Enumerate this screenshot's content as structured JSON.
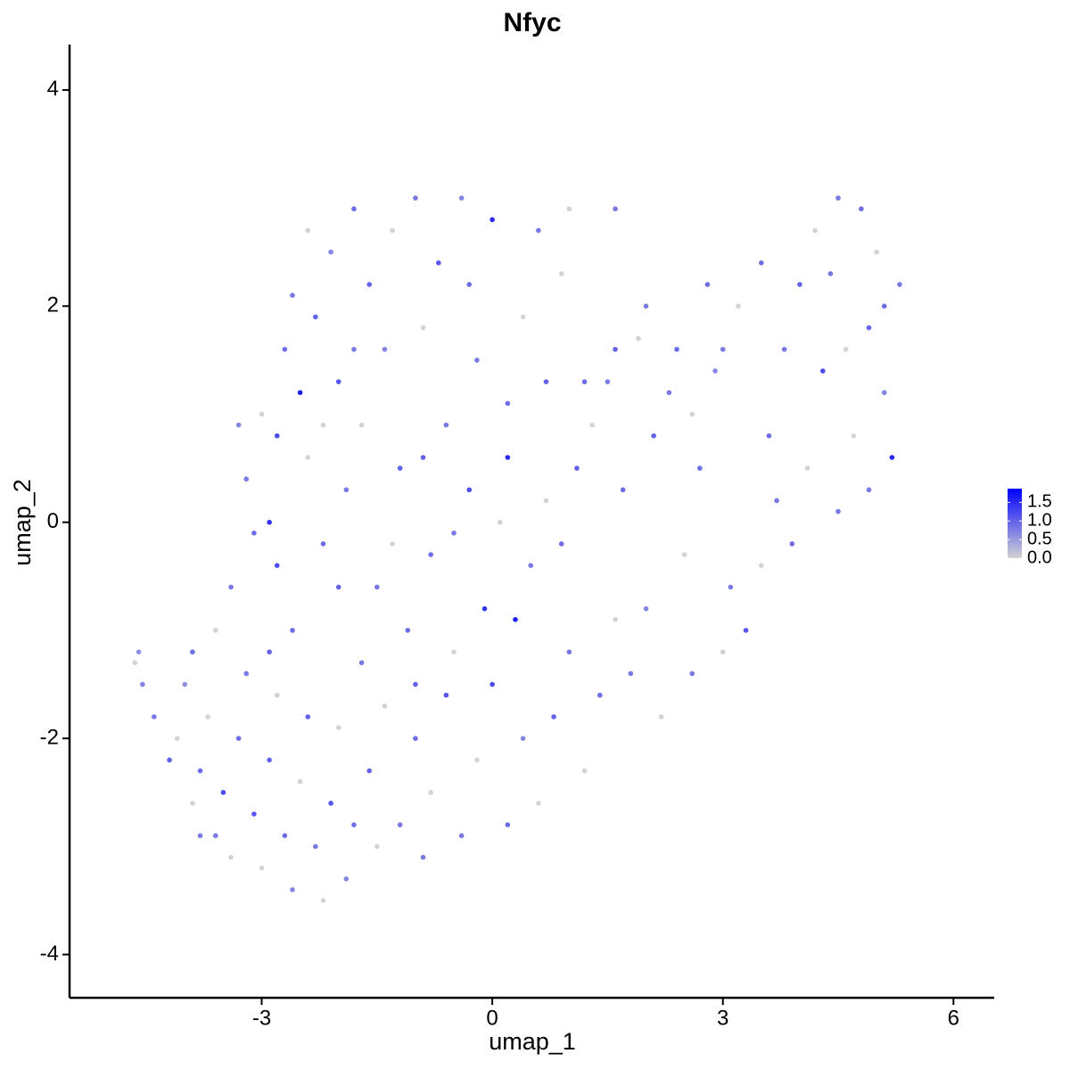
{
  "chart_data": {
    "type": "scatter",
    "title": "Nfyc",
    "x_label": "umap_1",
    "y_label": "umap_2",
    "x": [
      -4.6,
      -4.65,
      -4.55,
      -4.4,
      -4.2,
      -4.1,
      -4.0,
      -3.9,
      -3.8,
      -3.7,
      -3.6,
      -3.5,
      -3.4,
      -3.3,
      -3.2,
      -3.1,
      -3.0,
      -2.9,
      -2.8,
      -2.7,
      -2.6,
      -2.5,
      -2.4,
      -2.3,
      -2.2,
      -2.1,
      -2.0,
      -1.9,
      -1.8,
      -1.7,
      -3.2,
      -3.1,
      -3.0,
      -2.9,
      -2.8,
      -2.7,
      -2.6,
      -2.5,
      -2.4,
      -2.3,
      -2.2,
      -2.1,
      -2.0,
      -1.9,
      -1.8,
      -1.7,
      -1.6,
      -1.5,
      -1.4,
      -1.3,
      -1.2,
      -1.1,
      -1.0,
      -0.9,
      -0.8,
      -0.7,
      -0.6,
      -0.5,
      -0.4,
      -0.3,
      -0.2,
      -0.1,
      0.0,
      0.1,
      0.2,
      -1.6,
      -1.4,
      -1.2,
      -1.0,
      -0.8,
      -0.6,
      -0.4,
      -0.2,
      0.0,
      0.2,
      0.4,
      0.6,
      0.8,
      1.0,
      1.2,
      1.4,
      1.6,
      1.8,
      2.0,
      2.2,
      0.3,
      0.5,
      0.7,
      0.9,
      1.1,
      1.3,
      1.5,
      1.7,
      1.9,
      2.1,
      2.3,
      2.5,
      2.7,
      2.9,
      3.1,
      3.3,
      3.5,
      3.7,
      3.9,
      4.1,
      4.3,
      4.5,
      4.7,
      4.9,
      5.1,
      5.2,
      5.3,
      5.0,
      4.8,
      4.5,
      4.2,
      4.0,
      3.8,
      3.5,
      3.2,
      3.0,
      2.8,
      2.6,
      2.4,
      2.0,
      1.6,
      1.2,
      0.9,
      0.6,
      1.0,
      1.6,
      -2.6,
      -2.0,
      -1.3,
      -0.9,
      -1.8,
      -2.2,
      -3.4,
      -3.6,
      -3.3,
      -2.4,
      -0.3,
      0.4,
      0.7,
      0.2,
      -0.5,
      -1.0,
      -2.8,
      -3.8,
      -3.9,
      -2.9,
      -1.5,
      -0.9,
      2.6,
      3.0,
      3.6,
      4.4,
      4.6,
      5.1,
      4.9
    ],
    "y": [
      -1.2,
      -1.3,
      -1.5,
      -1.8,
      -2.2,
      -2.0,
      -1.5,
      -2.6,
      -2.3,
      -1.8,
      -2.9,
      -2.5,
      -3.1,
      -2.0,
      -1.4,
      -2.7,
      -3.2,
      -2.2,
      -1.6,
      -2.9,
      -3.4,
      -2.4,
      -1.8,
      -3.0,
      -3.5,
      -2.6,
      -1.9,
      -3.3,
      -2.8,
      -1.3,
      0.4,
      -0.1,
      1.0,
      0.0,
      0.8,
      1.6,
      2.1,
      1.2,
      0.6,
      1.9,
      -0.2,
      2.5,
      1.3,
      0.3,
      2.9,
      0.9,
      2.2,
      -0.6,
      1.6,
      2.7,
      0.5,
      -1.0,
      3.0,
      1.8,
      -0.3,
      2.4,
      0.9,
      -1.2,
      3.0,
      0.3,
      1.5,
      -0.8,
      2.8,
      0.0,
      1.1,
      -2.3,
      -1.7,
      -2.8,
      -2.0,
      -2.5,
      -1.6,
      -2.9,
      -2.2,
      -1.5,
      -2.8,
      -2.0,
      -2.6,
      -1.8,
      -1.2,
      -2.3,
      -1.6,
      -0.9,
      -1.4,
      -0.8,
      -1.8,
      -0.9,
      -0.4,
      0.2,
      -0.2,
      0.5,
      0.9,
      1.3,
      0.3,
      1.7,
      0.8,
      1.2,
      -0.3,
      0.5,
      1.4,
      -0.6,
      -1.0,
      -0.4,
      0.2,
      -0.2,
      0.5,
      1.4,
      0.1,
      0.8,
      1.8,
      1.2,
      0.6,
      2.2,
      2.5,
      2.9,
      3.0,
      2.7,
      2.2,
      1.6,
      2.4,
      2.0,
      1.6,
      2.2,
      1.0,
      1.6,
      2.0,
      1.6,
      1.3,
      2.3,
      2.7,
      2.9,
      2.9,
      -1.0,
      -0.6,
      -0.2,
      0.6,
      1.6,
      0.9,
      -0.6,
      -1.0,
      0.9,
      2.7,
      2.2,
      1.9,
      1.3,
      0.6,
      -0.1,
      -1.5,
      -0.4,
      -2.9,
      -1.2,
      -1.2,
      -3.0,
      -3.1,
      -1.4,
      -1.2,
      0.8,
      2.3,
      1.6,
      2.0,
      0.3
    ],
    "values": [
      0.6,
      0,
      0.7,
      0.8,
      1.0,
      0,
      0.6,
      0,
      0.9,
      0,
      0.8,
      1.2,
      0,
      0.9,
      0.8,
      1.1,
      0,
      1.0,
      0,
      0.9,
      0.7,
      0,
      1.0,
      0.8,
      0,
      1.1,
      0,
      0.7,
      0.9,
      0.8,
      0.8,
      0.9,
      0,
      1.4,
      1.2,
      0.9,
      0.8,
      1.6,
      0,
      1.0,
      0.9,
      0.7,
      1.1,
      0.8,
      0.9,
      0,
      1.0,
      0.8,
      0.7,
      0,
      1.0,
      0.9,
      0.8,
      0,
      0.9,
      1.1,
      0.8,
      0,
      0.7,
      1.2,
      0.8,
      1.4,
      1.5,
      0,
      0.9,
      1.0,
      0,
      0.8,
      0.9,
      0,
      1.1,
      0.8,
      0,
      1.2,
      0.9,
      0.7,
      0,
      1.0,
      0.8,
      0,
      0.9,
      0,
      0.8,
      0.7,
      0,
      1.6,
      0.8,
      0,
      0.9,
      1.0,
      0,
      0.8,
      0.9,
      0,
      1.0,
      0.8,
      0,
      0.9,
      0.7,
      0.8,
      1.1,
      0,
      0.8,
      0.9,
      0,
      1.2,
      0.8,
      0,
      1.0,
      0.7,
      1.5,
      0.8,
      0,
      0.9,
      0.8,
      0,
      1.0,
      0.8,
      0.9,
      0,
      0.8,
      0.9,
      0,
      0.9,
      0.8,
      1.0,
      0.9,
      0,
      0.8,
      0,
      0.8,
      0.9,
      1.0,
      0,
      1.0,
      0.8,
      0,
      0.8,
      0,
      0.7,
      0,
      0.9,
      0,
      1.0,
      1.5,
      0.8,
      1.0,
      1.2,
      0.8,
      0.9,
      1.0,
      0,
      0.8,
      0.8,
      0,
      0.9,
      0.8,
      0,
      0.9,
      0.8
    ],
    "xlim": [
      -5.5,
      6.53
    ],
    "ylim": [
      -4.4,
      4.42
    ],
    "xticks": [
      -3,
      0,
      3,
      6
    ],
    "yticks": [
      -4,
      -2,
      0,
      2,
      4
    ],
    "colorbar": {
      "clim": [
        0,
        1.87
      ],
      "colors": [
        "#d3d3d3",
        "#0000ff"
      ],
      "ticks": [
        {
          "value": 0,
          "label": "0.0"
        },
        {
          "value": 0.5,
          "label": "0.5"
        },
        {
          "value": 1,
          "label": "1.0"
        },
        1.5
      ]
    }
  }
}
